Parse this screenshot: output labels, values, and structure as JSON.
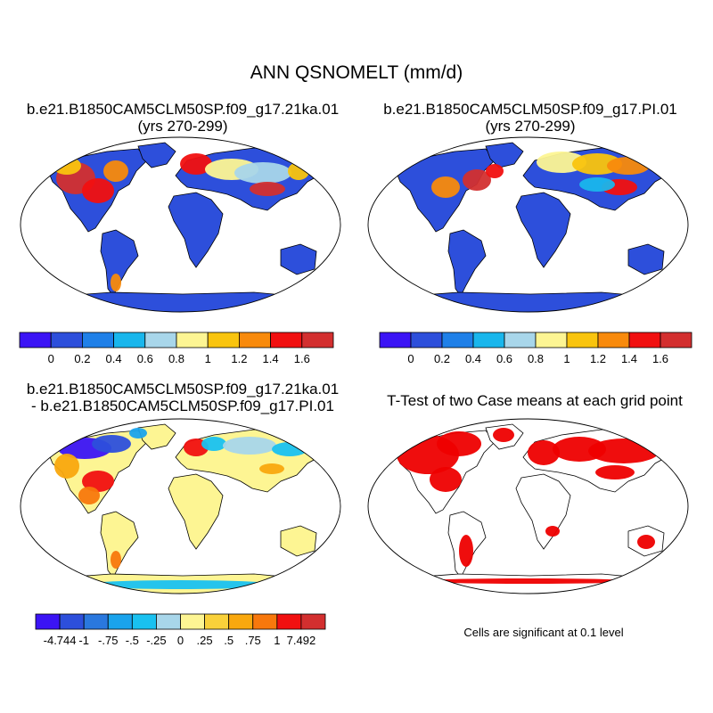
{
  "figure": {
    "title": "ANN QSNOMELT (mm/d)",
    "panels": [
      {
        "id": "case1",
        "title_line1": "b.e21.B1850CAM5CLM50SP.f09_g17.21ka.01",
        "title_line2": "(yrs 270-299)"
      },
      {
        "id": "case2",
        "title_line1": "b.e21.B1850CAM5CLM50SP.f09_g17.PI.01",
        "title_line2": "(yrs 270-299)"
      },
      {
        "id": "diff",
        "title_line1": "b.e21.B1850CAM5CLM50SP.f09_g17.21ka.01",
        "title_line2": "- b.e21.B1850CAM5CLM50SP.f09_g17.PI.01"
      },
      {
        "id": "ttest",
        "title_line1": "T-Test of two Case means at each grid point",
        "title_line2": ""
      }
    ],
    "significance_note": "Cells are significant at 0.1 level"
  },
  "colorbars": {
    "case_scale": {
      "colors": [
        "#3b14f5",
        "#2d4fdb",
        "#1f80e8",
        "#19b6ec",
        "#a8d6ea",
        "#fdf593",
        "#f9c40e",
        "#f88a0c",
        "#f11010",
        "#d32f2f"
      ],
      "labels": [
        "0",
        "0.2",
        "0.4",
        "0.6",
        "0.8",
        "1",
        "1.2",
        "1.4",
        "1.6"
      ]
    },
    "diff_scale": {
      "colors": [
        "#3b14f5",
        "#2d4fdb",
        "#2a78de",
        "#1aa3ec",
        "#19c1f0",
        "#a8d6ea",
        "#fdf593",
        "#f9d13a",
        "#f9a80e",
        "#f8780c",
        "#f11010",
        "#d32f2f"
      ],
      "labels": [
        "-4.744",
        "-1",
        "-.75",
        "-.5",
        "-.25",
        "0",
        ".25",
        ".5",
        ".75",
        "1",
        "7.492"
      ]
    }
  },
  "map_colors": {
    "ocean": "#ffffff",
    "coast": "#000000",
    "low_melt": "#2d4fdb",
    "diff_neutral": "#fdf593",
    "significant": "#ee0000"
  }
}
